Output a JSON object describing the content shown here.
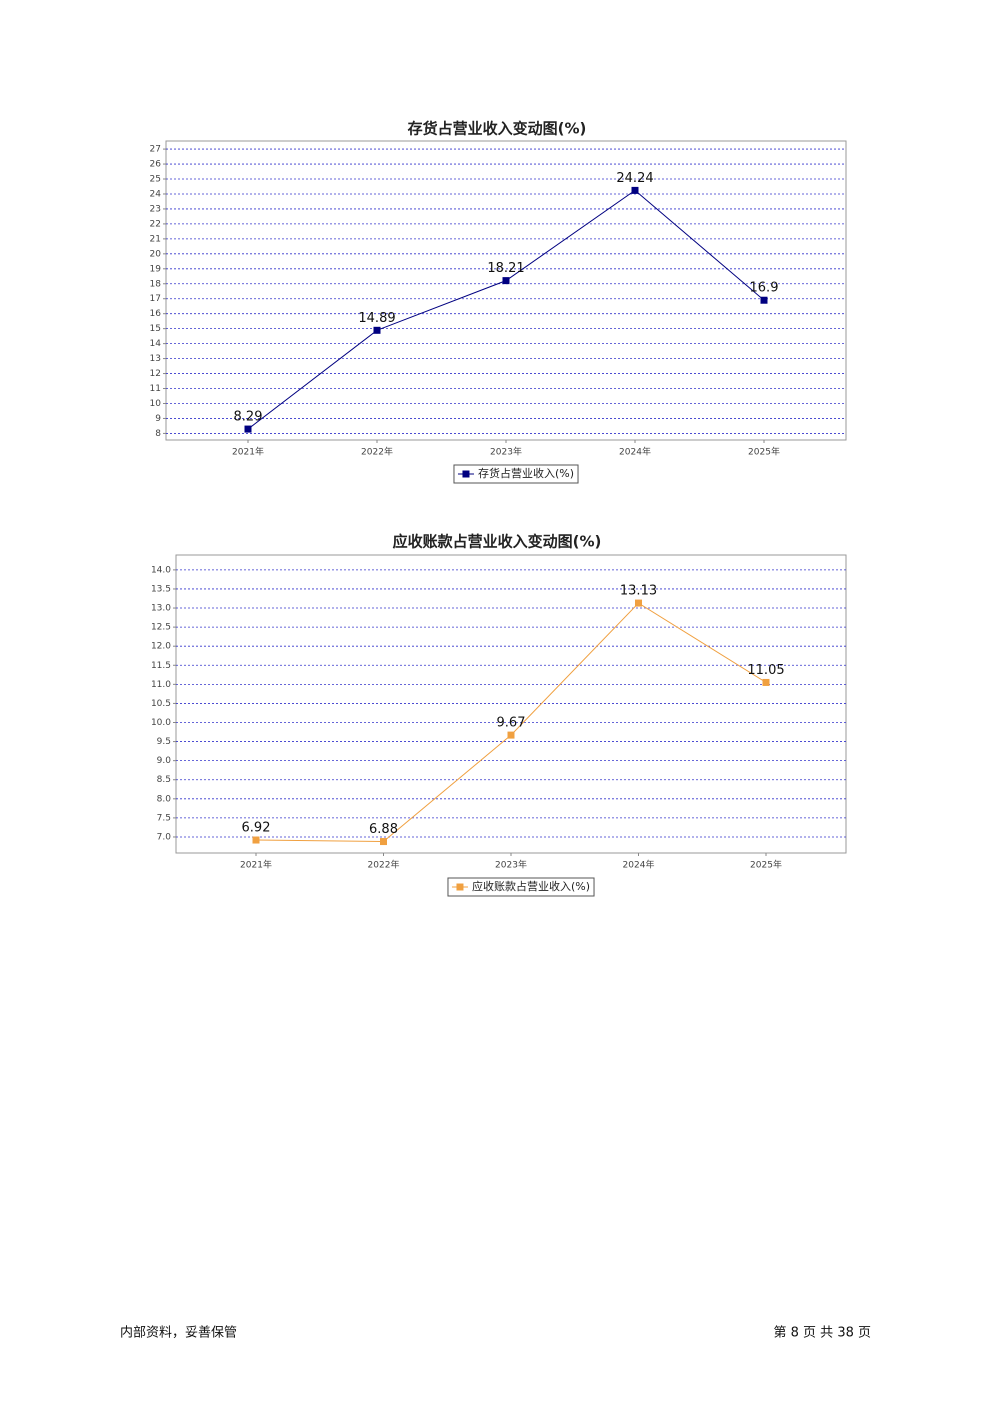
{
  "chart_data": [
    {
      "type": "line",
      "title": "存货占营业收入变动图(%)",
      "categories": [
        "2021年",
        "2022年",
        "2023年",
        "2024年",
        "2025年"
      ],
      "series": [
        {
          "name": "存货占营业收入(%)",
          "color": "#000080",
          "values": [
            8.29,
            14.89,
            18.21,
            24.24,
            16.9
          ]
        }
      ],
      "ylim": [
        7.56,
        27.54
      ],
      "yticks": [
        8,
        9,
        10,
        11,
        12,
        13,
        14,
        15,
        16,
        17,
        18,
        19,
        20,
        21,
        22,
        23,
        24,
        25,
        26,
        27
      ],
      "grid": true,
      "legend": "bottom"
    },
    {
      "type": "line",
      "title": "应收账款占营业收入变动图(%)",
      "categories": [
        "2021年",
        "2022年",
        "2023年",
        "2024年",
        "2025年"
      ],
      "series": [
        {
          "name": "应收账款占营业收入(%)",
          "color": "#f0a040",
          "values": [
            6.92,
            6.88,
            9.67,
            13.13,
            11.05
          ]
        }
      ],
      "ylim": [
        6.58,
        14.39
      ],
      "yticks": [
        {
          "value": 7,
          "label": "7.0"
        },
        {
          "value": 7.5,
          "label": "7.5"
        },
        {
          "value": 8,
          "label": "8.0"
        },
        {
          "value": 8.5,
          "label": "8.5"
        },
        {
          "value": 9,
          "label": "9.0"
        },
        {
          "value": 9.5,
          "label": "9.5"
        },
        {
          "value": 10,
          "label": "10.0"
        },
        {
          "value": 10.5,
          "label": "10.5"
        },
        {
          "value": 11,
          "label": "11.0"
        },
        {
          "value": 11.5,
          "label": "11.5"
        },
        {
          "value": 12,
          "label": "12.0"
        },
        {
          "value": 12.5,
          "label": "12.5"
        },
        {
          "value": 13,
          "label": "13.0"
        },
        {
          "value": 13.5,
          "label": "13.5"
        },
        {
          "value": 14,
          "label": "14.0"
        }
      ],
      "grid": true,
      "legend": "bottom"
    }
  ],
  "footer": {
    "left": "内部资料，妥善保管",
    "right": "第 8 页  共 38 页"
  }
}
